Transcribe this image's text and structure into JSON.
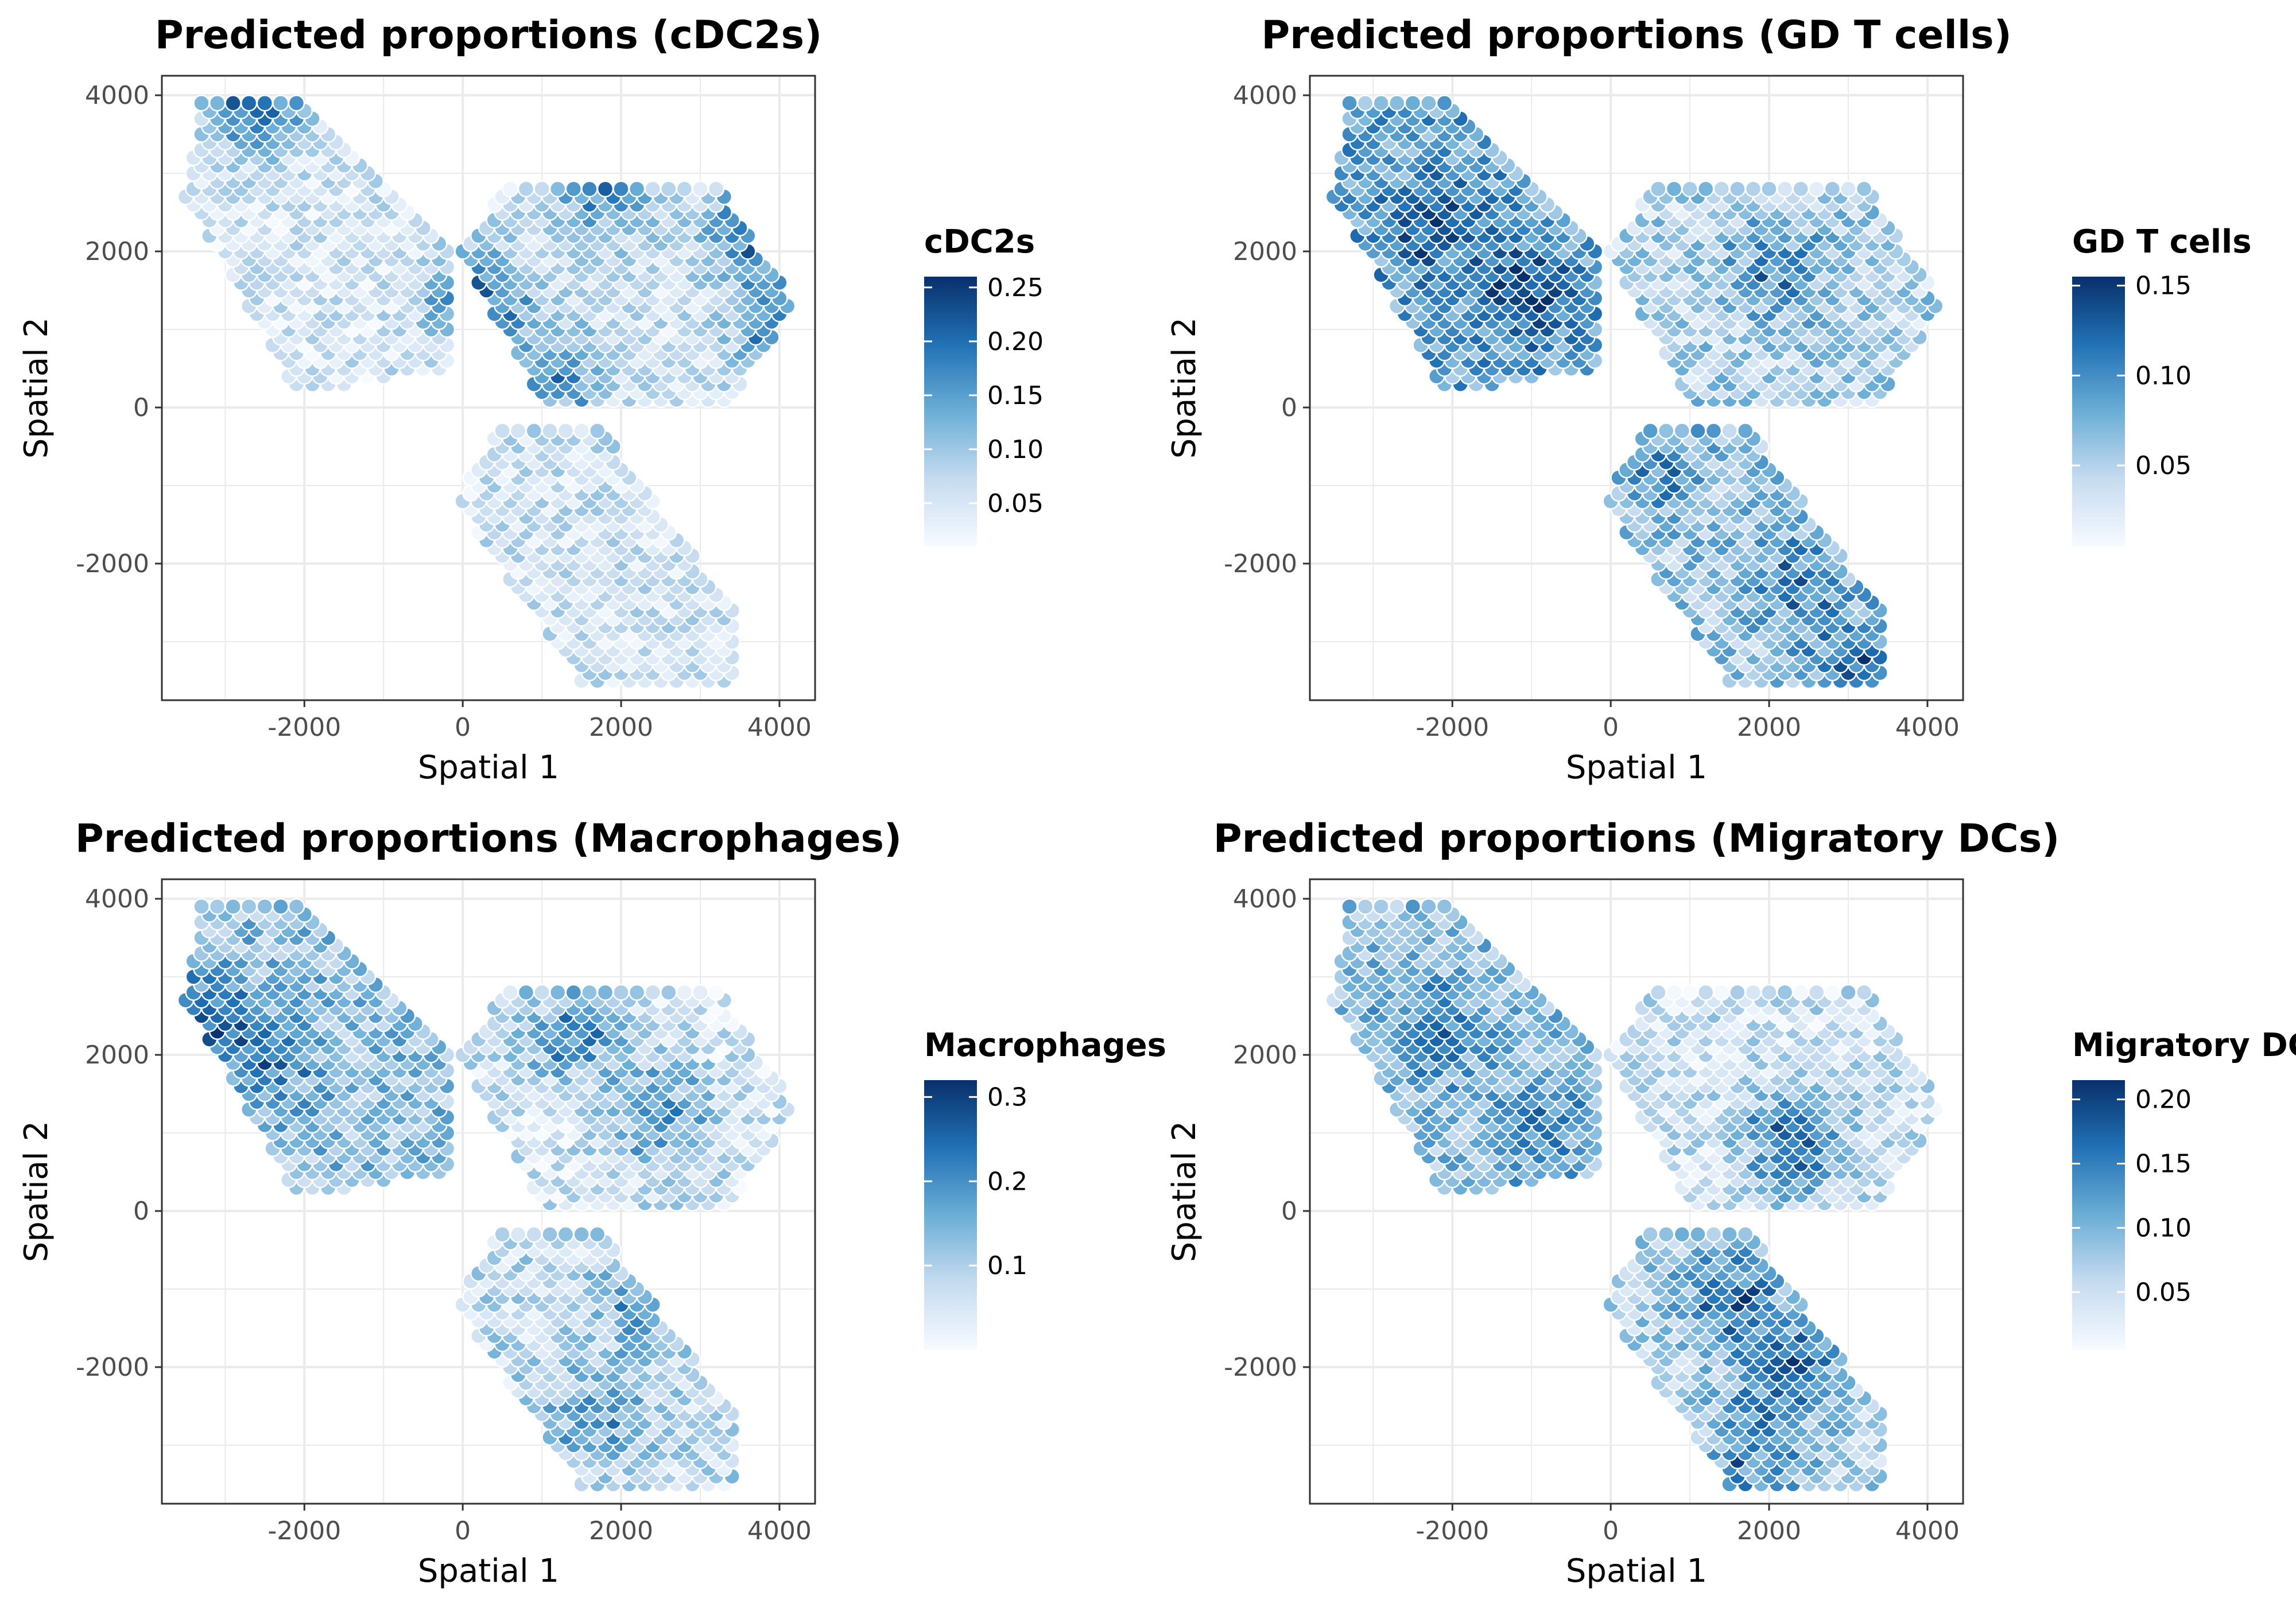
{
  "colors": {
    "background": "#ffffff",
    "panel_border": "#333333",
    "gridline": "#ebebeb",
    "scale_low": "#f7fbff",
    "scale_mid_low": "#c6dbef",
    "scale_mid": "#6baed6",
    "scale_mid_high": "#2171b5",
    "scale_high": "#08306b",
    "point_stroke": "#ffffff"
  },
  "chart_data": [
    {
      "type": "scatter",
      "title": "Predicted proportions (cDC2s)",
      "xlabel": "Spatial 1",
      "ylabel": "Spatial 2",
      "xlim": [
        -3800,
        4450
      ],
      "ylim": [
        -3750,
        4250
      ],
      "xticks": [
        -2000,
        0,
        2000,
        4000
      ],
      "yticks": [
        -2000,
        0,
        2000,
        4000
      ],
      "xtick_labels": [
        "-2000",
        "0",
        "2000",
        "4000"
      ],
      "ytick_labels": [
        "-2000",
        "0",
        "2000",
        "4000"
      ],
      "grid": true,
      "legend": {
        "title": "cDC2s",
        "placement": "right",
        "range": [
          0.01,
          0.26
        ],
        "ticks": [
          0.05,
          0.1,
          0.15,
          0.2,
          0.25
        ],
        "tick_labels": [
          "0.05",
          "0.10",
          "0.15",
          "0.20",
          "0.25"
        ]
      },
      "hotspots": [
        {
          "x": -2600,
          "y": 4000,
          "value": 0.24
        },
        {
          "x": 200,
          "y": 1400,
          "value": 0.25
        },
        {
          "x": 1800,
          "y": 2800,
          "value": 0.2
        },
        {
          "x": 3700,
          "y": 2200,
          "value": 0.23
        },
        {
          "x": 4100,
          "y": 900,
          "value": 0.22
        },
        {
          "x": 1200,
          "y": 400,
          "value": 0.18
        }
      ],
      "base": [
        0.055,
        0.06,
        0.06
      ],
      "spread": 0.045
    },
    {
      "type": "scatter",
      "title": "Predicted proportions (GD T cells)",
      "xlabel": "Spatial 1",
      "ylabel": "Spatial 2",
      "xlim": [
        -3800,
        4450
      ],
      "ylim": [
        -3750,
        4250
      ],
      "xticks": [
        -2000,
        0,
        2000,
        4000
      ],
      "yticks": [
        -2000,
        0,
        2000,
        4000
      ],
      "xtick_labels": [
        "-2000",
        "0",
        "2000",
        "4000"
      ],
      "ytick_labels": [
        "-2000",
        "0",
        "2000",
        "4000"
      ],
      "grid": true,
      "legend": {
        "title": "GD T cells",
        "placement": "right",
        "range": [
          0.005,
          0.155
        ],
        "ticks": [
          0.05,
          0.1,
          0.15
        ],
        "tick_labels": [
          "0.05",
          "0.10",
          "0.15"
        ]
      },
      "hotspots": [
        {
          "x": -2200,
          "y": 2300,
          "value": 0.14
        },
        {
          "x": -1000,
          "y": 1500,
          "value": 0.15
        },
        {
          "x": 2100,
          "y": 1800,
          "value": 0.13
        },
        {
          "x": 2400,
          "y": -2200,
          "value": 0.12
        },
        {
          "x": 3100,
          "y": -3300,
          "value": 0.13
        },
        {
          "x": 600,
          "y": -800,
          "value": 0.11
        }
      ],
      "base": [
        0.085,
        0.05,
        0.06
      ],
      "spread": 0.035
    },
    {
      "type": "scatter",
      "title": "Predicted proportions (Macrophages)",
      "xlabel": "Spatial 1",
      "ylabel": "Spatial 2",
      "xlim": [
        -3800,
        4450
      ],
      "ylim": [
        -3750,
        4250
      ],
      "xticks": [
        -2000,
        0,
        2000,
        4000
      ],
      "yticks": [
        -2000,
        0,
        2000,
        4000
      ],
      "xtick_labels": [
        "-2000",
        "0",
        "2000",
        "4000"
      ],
      "ytick_labels": [
        "-2000",
        "0",
        "2000",
        "4000"
      ],
      "grid": true,
      "legend": {
        "title": "Macrophages",
        "placement": "right",
        "range": [
          0.0,
          0.32
        ],
        "ticks": [
          0.1,
          0.2,
          0.3
        ],
        "tick_labels": [
          "0.1",
          "0.2",
          "0.3"
        ]
      },
      "hotspots": [
        {
          "x": -3300,
          "y": 2400,
          "value": 0.32
        },
        {
          "x": -2400,
          "y": 1900,
          "value": 0.22
        },
        {
          "x": 2500,
          "y": 1200,
          "value": 0.24
        },
        {
          "x": 1400,
          "y": 2300,
          "value": 0.25
        },
        {
          "x": 1700,
          "y": -2600,
          "value": 0.21
        },
        {
          "x": 2300,
          "y": -1100,
          "value": 0.2
        }
      ],
      "base": [
        0.13,
        0.06,
        0.08
      ],
      "spread": 0.07
    },
    {
      "type": "scatter",
      "title": "Predicted proportions (Migratory DCs)",
      "xlabel": "Spatial 1",
      "ylabel": "Spatial 2",
      "xlim": [
        -3800,
        4450
      ],
      "ylim": [
        -3750,
        4250
      ],
      "xticks": [
        -2000,
        0,
        2000,
        4000
      ],
      "yticks": [
        -2000,
        0,
        2000,
        4000
      ],
      "xtick_labels": [
        "-2000",
        "0",
        "2000",
        "4000"
      ],
      "ytick_labels": [
        "-2000",
        "0",
        "2000",
        "4000"
      ],
      "grid": true,
      "legend": {
        "title": "Migratory DCs",
        "placement": "right",
        "range": [
          0.005,
          0.215
        ],
        "ticks": [
          0.05,
          0.1,
          0.15,
          0.2
        ],
        "tick_labels": [
          "0.05",
          "0.10",
          "0.15",
          "0.20"
        ]
      },
      "hotspots": [
        {
          "x": -2200,
          "y": 2300,
          "value": 0.18
        },
        {
          "x": -900,
          "y": 1100,
          "value": 0.17
        },
        {
          "x": 2300,
          "y": 900,
          "value": 0.21
        },
        {
          "x": 1500,
          "y": -1000,
          "value": 0.19
        },
        {
          "x": 2200,
          "y": -2000,
          "value": 0.2
        },
        {
          "x": 1800,
          "y": -3200,
          "value": 0.17
        }
      ],
      "base": [
        0.09,
        0.05,
        0.07
      ],
      "spread": 0.045
    }
  ],
  "tissue_sections": [
    {
      "name": "upper-left section",
      "outline": [
        [
          -3300,
          3900
        ],
        [
          -2100,
          4000
        ],
        [
          -100,
          2100
        ],
        [
          -200,
          500
        ],
        [
          -2100,
          200
        ],
        [
          -3500,
          2700
        ]
      ]
    },
    {
      "name": "upper-right section",
      "outline": [
        [
          -50,
          2000
        ],
        [
          600,
          2900
        ],
        [
          3200,
          2900
        ],
        [
          4200,
          1300
        ],
        [
          3400,
          100
        ],
        [
          1000,
          100
        ]
      ]
    },
    {
      "name": "lower section",
      "outline": [
        [
          500,
          -200
        ],
        [
          1700,
          -200
        ],
        [
          3500,
          -2700
        ],
        [
          3400,
          -3500
        ],
        [
          1500,
          -3500
        ],
        [
          -100,
          -1200
        ]
      ]
    }
  ]
}
